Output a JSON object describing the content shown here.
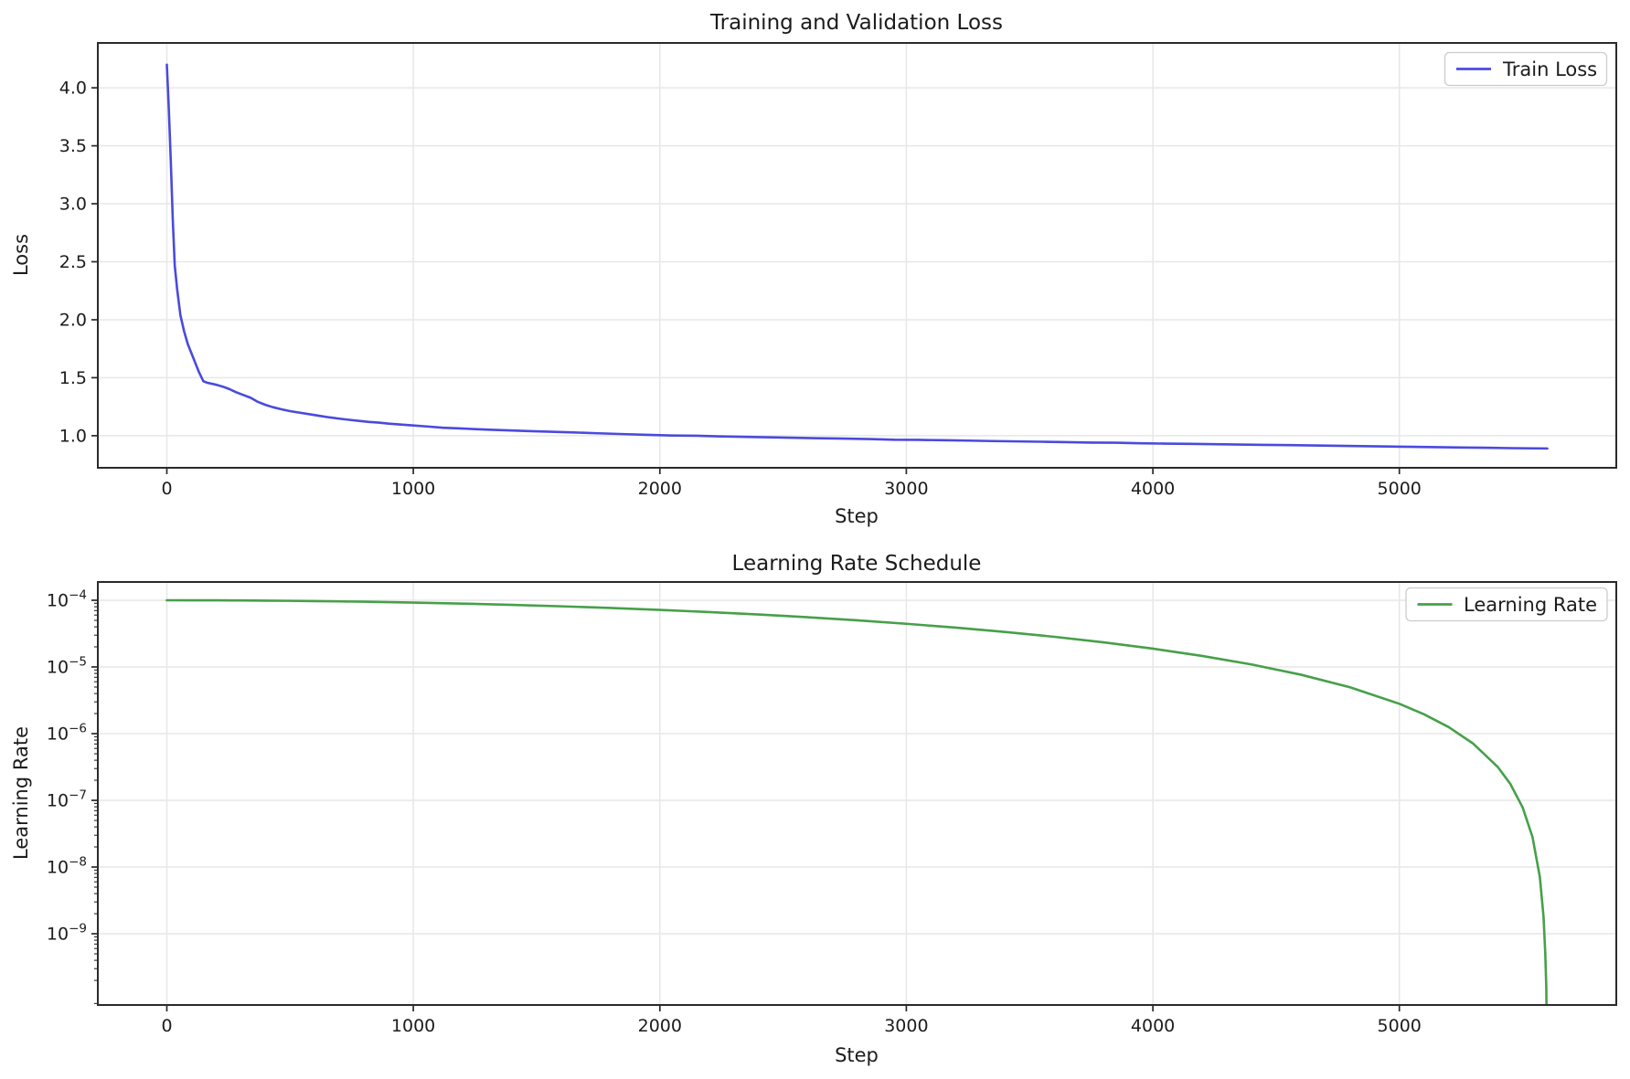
{
  "figure": {
    "background": "#ffffff"
  },
  "chart_data": [
    {
      "type": "line",
      "title": "Training and Validation Loss",
      "xlabel": "Step",
      "ylabel": "Loss",
      "yscale": "linear",
      "grid": true,
      "legend_position": "upper right",
      "xlim": [
        -280,
        5880
      ],
      "ylim": [
        0.7235,
        4.387
      ],
      "xticks": [
        0,
        1000,
        2000,
        3000,
        4000,
        5000
      ],
      "yticks": [
        1.0,
        1.5,
        2.0,
        2.5,
        3.0,
        3.5,
        4.0
      ],
      "series": [
        {
          "name": "Train Loss",
          "color": "#4a4ade",
          "points": [
            [
              0,
              4.2
            ],
            [
              8,
              3.82
            ],
            [
              16,
              3.37
            ],
            [
              24,
              2.87
            ],
            [
              32,
              2.47
            ],
            [
              42,
              2.26
            ],
            [
              55,
              2.04
            ],
            [
              70,
              1.9
            ],
            [
              85,
              1.79
            ],
            [
              100,
              1.71
            ],
            [
              115,
              1.63
            ],
            [
              130,
              1.55
            ],
            [
              148,
              1.47
            ],
            [
              165,
              1.456
            ],
            [
              185,
              1.447
            ],
            [
              205,
              1.437
            ],
            [
              230,
              1.421
            ],
            [
              255,
              1.401
            ],
            [
              280,
              1.376
            ],
            [
              310,
              1.351
            ],
            [
              340,
              1.327
            ],
            [
              370,
              1.291
            ],
            [
              400,
              1.266
            ],
            [
              430,
              1.246
            ],
            [
              465,
              1.228
            ],
            [
              500,
              1.212
            ],
            [
              540,
              1.198
            ],
            [
              580,
              1.185
            ],
            [
              620,
              1.171
            ],
            [
              660,
              1.158
            ],
            [
              700,
              1.147
            ],
            [
              740,
              1.137
            ],
            [
              780,
              1.128
            ],
            [
              820,
              1.119
            ],
            [
              860,
              1.113
            ],
            [
              900,
              1.104
            ],
            [
              950,
              1.096
            ],
            [
              1000,
              1.088
            ],
            [
              1060,
              1.079
            ],
            [
              1120,
              1.069
            ],
            [
              1180,
              1.064
            ],
            [
              1250,
              1.057
            ],
            [
              1320,
              1.051
            ],
            [
              1400,
              1.045
            ],
            [
              1480,
              1.039
            ],
            [
              1560,
              1.034
            ],
            [
              1650,
              1.028
            ],
            [
              1750,
              1.021
            ],
            [
              1850,
              1.014
            ],
            [
              1950,
              1.008
            ],
            [
              2050,
              1.002
            ],
            [
              2150,
              1.0
            ],
            [
              2250,
              0.994
            ],
            [
              2350,
              0.99
            ],
            [
              2450,
              0.986
            ],
            [
              2550,
              0.982
            ],
            [
              2650,
              0.978
            ],
            [
              2750,
              0.975
            ],
            [
              2850,
              0.971
            ],
            [
              2950,
              0.965
            ],
            [
              3050,
              0.964
            ],
            [
              3150,
              0.961
            ],
            [
              3250,
              0.958
            ],
            [
              3350,
              0.954
            ],
            [
              3450,
              0.951
            ],
            [
              3550,
              0.948
            ],
            [
              3650,
              0.945
            ],
            [
              3750,
              0.941
            ],
            [
              3850,
              0.94
            ],
            [
              3950,
              0.935
            ],
            [
              4050,
              0.932
            ],
            [
              4150,
              0.93
            ],
            [
              4250,
              0.927
            ],
            [
              4350,
              0.924
            ],
            [
              4450,
              0.921
            ],
            [
              4550,
              0.919
            ],
            [
              4650,
              0.916
            ],
            [
              4750,
              0.913
            ],
            [
              4850,
              0.91
            ],
            [
              4950,
              0.907
            ],
            [
              5050,
              0.904
            ],
            [
              5150,
              0.901
            ],
            [
              5250,
              0.898
            ],
            [
              5350,
              0.896
            ],
            [
              5450,
              0.893
            ],
            [
              5550,
              0.891
            ],
            [
              5600,
              0.89
            ]
          ]
        }
      ]
    },
    {
      "type": "line",
      "title": "Learning Rate Schedule",
      "xlabel": "Step",
      "ylabel": "Learning Rate",
      "yscale": "log",
      "grid": true,
      "legend_position": "upper right",
      "xlim": [
        -280,
        5880
      ],
      "ylim_log10": [
        -10.068,
        -3.726
      ],
      "xticks": [
        0,
        1000,
        2000,
        3000,
        4000,
        5000
      ],
      "ytick_exponents": [
        -4,
        -5,
        -6,
        -7,
        -8,
        -9
      ],
      "series": [
        {
          "name": "Learning Rate",
          "color": "#46a049",
          "points": [
            [
              0,
              0.0001
            ],
            [
              100,
              9.992e-05
            ],
            [
              200,
              9.969e-05
            ],
            [
              300,
              9.929e-05
            ],
            [
              400,
              9.875e-05
            ],
            [
              500,
              9.805e-05
            ],
            [
              600,
              9.72e-05
            ],
            [
              700,
              9.619e-05
            ],
            [
              800,
              9.505e-05
            ],
            [
              900,
              9.376e-05
            ],
            [
              1000,
              9.234e-05
            ],
            [
              1200,
              8.909e-05
            ],
            [
              1400,
              8.536e-05
            ],
            [
              1600,
              8.117e-05
            ],
            [
              1800,
              7.66e-05
            ],
            [
              2000,
              7.169e-05
            ],
            [
              2200,
              6.651e-05
            ],
            [
              2400,
              6.113e-05
            ],
            [
              2600,
              5.56e-05
            ],
            [
              2800,
              5e-05
            ],
            [
              3000,
              4.44e-05
            ],
            [
              3200,
              3.887e-05
            ],
            [
              3400,
              3.349e-05
            ],
            [
              3600,
              2.831e-05
            ],
            [
              3800,
              2.34e-05
            ],
            [
              4000,
              1.883e-05
            ],
            [
              4200,
              1.464e-05
            ],
            [
              4400,
              1.091e-05
            ],
            [
              4600,
              7.664e-06
            ],
            [
              4800,
              4.952e-06
            ],
            [
              5000,
              2.804e-06
            ],
            [
              5100,
              1.953e-06
            ],
            [
              5200,
              1.254e-06
            ],
            [
              5300,
              7.07e-07
            ],
            [
              5400,
              3.14e-07
            ],
            [
              5450,
              1.77e-07
            ],
            [
              5500,
              7.85e-08
            ],
            [
              5540,
              2.83e-08
            ],
            [
              5570,
              7.08e-09
            ],
            [
              5585,
              1.77e-09
            ],
            [
              5592,
              5e-10
            ],
            [
              5596,
              1.6e-10
            ],
            [
              5598,
              4e-11
            ]
          ]
        }
      ]
    }
  ]
}
